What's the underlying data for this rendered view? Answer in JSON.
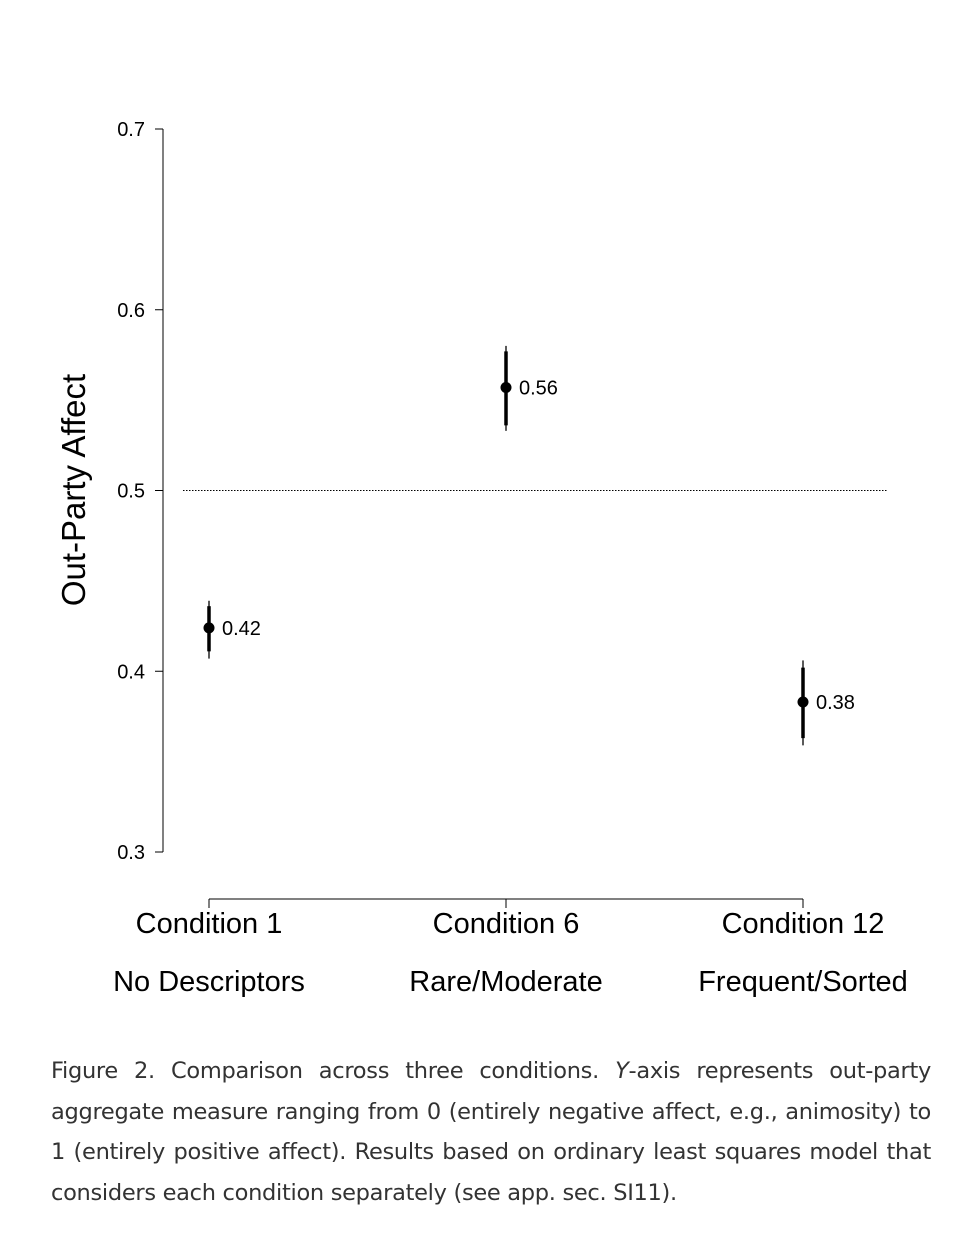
{
  "chart_data": {
    "type": "scatter",
    "title": "",
    "ylabel": "Out-Party Affect",
    "xlabel": "",
    "ylim": [
      0.3,
      0.7
    ],
    "yticks": [
      0.3,
      0.4,
      0.5,
      0.6,
      0.7
    ],
    "ytick_labels": [
      "0.3",
      "0.4",
      "0.5",
      "0.6",
      "0.7"
    ],
    "reference_line": 0.5,
    "grid": false,
    "categories": [
      {
        "line1": "Condition 1",
        "line2": "No Descriptors"
      },
      {
        "line1": "Condition 6",
        "line2": "Rare/Moderate"
      },
      {
        "line1": "Condition 12",
        "line2": "Frequent/Sorted"
      }
    ],
    "points": [
      {
        "estimate": 0.424,
        "label": "0.42",
        "ci90": [
          0.411,
          0.436
        ],
        "ci95": [
          0.407,
          0.439
        ]
      },
      {
        "estimate": 0.557,
        "label": "0.56",
        "ci90": [
          0.536,
          0.577
        ],
        "ci95": [
          0.533,
          0.58
        ]
      },
      {
        "estimate": 0.383,
        "label": "0.38",
        "ci90": [
          0.363,
          0.402
        ],
        "ci95": [
          0.359,
          0.406
        ]
      }
    ]
  },
  "caption": {
    "prefix": "Figure 2. Comparison across three conditions. ",
    "italic": "Y",
    "text": "-axis represents out-party aggregate measure ranging from 0 (entirely negative affect, e.g., animosity) to 1 (entirely positive affect). Results based on ordinary least squares model that considers each condition separately (see app. sec. SI11)."
  }
}
